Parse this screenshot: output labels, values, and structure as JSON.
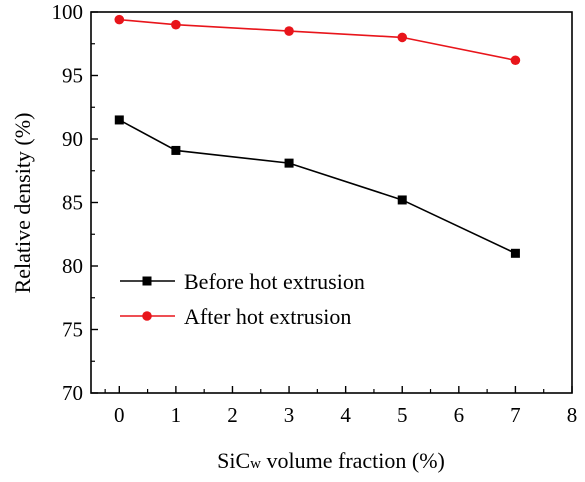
{
  "chart_data": {
    "type": "line",
    "xlabel_main": "SiC",
    "xlabel_sub": "w",
    "xlabel_rest": " volume fraction (%)",
    "ylabel": "Relative density (%)",
    "xlim": [
      -0.5,
      8
    ],
    "ylim": [
      70,
      100
    ],
    "x_ticks": [
      0,
      1,
      2,
      3,
      4,
      5,
      6,
      7,
      8
    ],
    "y_ticks": [
      70,
      75,
      80,
      85,
      90,
      95,
      100
    ],
    "grid": false,
    "legend_position": "lower-left",
    "series": [
      {
        "name": "Before hot extrusion",
        "marker": "square",
        "color": "#000000",
        "x": [
          0,
          1,
          3,
          5,
          7
        ],
        "y": [
          91.5,
          89.1,
          88.1,
          85.2,
          81.0
        ]
      },
      {
        "name": "After hot extrusion",
        "marker": "circle",
        "color": "#e8151b",
        "x": [
          0,
          1,
          3,
          5,
          7
        ],
        "y": [
          99.4,
          99.0,
          98.5,
          98.0,
          96.2
        ]
      }
    ]
  }
}
